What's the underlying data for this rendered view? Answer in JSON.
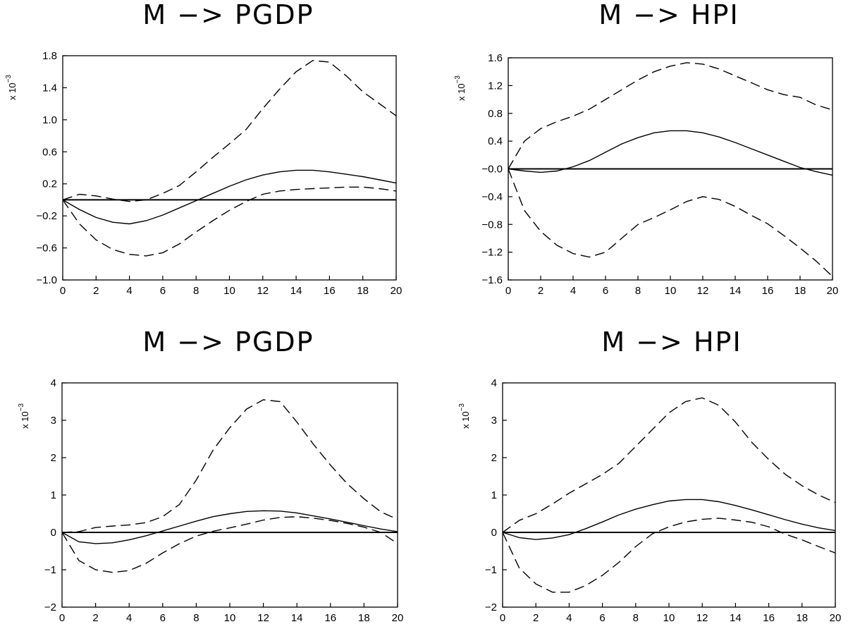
{
  "chart_data": [
    {
      "type": "line",
      "title": "M  −>  PGDP",
      "scale_label": "x 10",
      "scale_exponent": "−3",
      "xlim": [
        0,
        20
      ],
      "ylim": [
        -1.0,
        1.8
      ],
      "xticks": [
        0,
        2,
        4,
        6,
        8,
        10,
        12,
        14,
        16,
        18,
        20
      ],
      "xtick_labels": [
        "0",
        "2",
        "4",
        "6",
        "8",
        "10",
        "12",
        "14",
        "16",
        "18",
        "20"
      ],
      "yticks": [
        -1.0,
        -0.6,
        -0.2,
        0.2,
        0.6,
        1.0,
        1.4,
        1.8
      ],
      "ytick_labels": [
        "−1.0",
        "−0.6",
        "−0.2",
        "0.2",
        "0.6",
        "1.0",
        "1.4",
        "1.8"
      ],
      "zero_line": 0,
      "x": [
        0,
        1,
        2,
        3,
        4,
        5,
        6,
        7,
        8,
        9,
        10,
        11,
        12,
        13,
        14,
        15,
        16,
        17,
        18,
        19,
        20
      ],
      "series": [
        {
          "style": "solid",
          "values": [
            0,
            -0.12,
            -0.22,
            -0.28,
            -0.3,
            -0.26,
            -0.19,
            -0.1,
            -0.01,
            0.08,
            0.17,
            0.25,
            0.31,
            0.35,
            0.37,
            0.37,
            0.35,
            0.32,
            0.29,
            0.25,
            0.21
          ]
        },
        {
          "style": "dashed",
          "values": [
            0,
            0.07,
            0.05,
            0.01,
            -0.02,
            0.0,
            0.08,
            0.18,
            0.35,
            0.53,
            0.7,
            0.88,
            1.14,
            1.38,
            1.6,
            1.74,
            1.72,
            1.55,
            1.35,
            1.2,
            1.05
          ]
        },
        {
          "style": "dashed",
          "values": [
            0,
            -0.3,
            -0.5,
            -0.62,
            -0.68,
            -0.7,
            -0.66,
            -0.55,
            -0.4,
            -0.26,
            -0.13,
            -0.02,
            0.07,
            0.11,
            0.13,
            0.14,
            0.15,
            0.16,
            0.16,
            0.14,
            0.11
          ]
        }
      ]
    },
    {
      "type": "line",
      "title": "M  −>  HPI",
      "scale_label": "x 10",
      "scale_exponent": "−3",
      "xlim": [
        0,
        20
      ],
      "ylim": [
        -1.6,
        1.6
      ],
      "xticks": [
        0,
        2,
        4,
        6,
        8,
        10,
        12,
        14,
        16,
        18,
        20
      ],
      "xtick_labels": [
        "0",
        "2",
        "4",
        "6",
        "8",
        "10",
        "12",
        "14",
        "16",
        "18",
        "20"
      ],
      "yticks": [
        -1.6,
        -1.2,
        -0.8,
        -0.4,
        0.0,
        0.4,
        0.8,
        1.2,
        1.6
      ],
      "ytick_labels": [
        "−1.6",
        "−1.2",
        "−0.8",
        "−0.4",
        "−0.0",
        "0.4",
        "0.8",
        "1.2",
        "1.6"
      ],
      "zero_line": 0,
      "x": [
        0,
        1,
        2,
        3,
        4,
        5,
        6,
        7,
        8,
        9,
        10,
        11,
        12,
        13,
        14,
        15,
        16,
        17,
        18,
        19,
        20
      ],
      "series": [
        {
          "style": "solid",
          "values": [
            0,
            -0.03,
            -0.05,
            -0.03,
            0.03,
            0.12,
            0.24,
            0.36,
            0.45,
            0.52,
            0.55,
            0.55,
            0.52,
            0.46,
            0.38,
            0.29,
            0.2,
            0.11,
            0.02,
            -0.04,
            -0.09
          ]
        },
        {
          "style": "dashed",
          "values": [
            0,
            0.4,
            0.58,
            0.68,
            0.76,
            0.86,
            1.0,
            1.14,
            1.28,
            1.4,
            1.48,
            1.53,
            1.51,
            1.44,
            1.34,
            1.24,
            1.14,
            1.07,
            1.03,
            0.92,
            0.85
          ]
        },
        {
          "style": "dashed",
          "values": [
            0,
            -0.6,
            -0.9,
            -1.1,
            -1.22,
            -1.27,
            -1.2,
            -1.0,
            -0.8,
            -0.7,
            -0.59,
            -0.47,
            -0.4,
            -0.44,
            -0.54,
            -0.67,
            -0.79,
            -0.96,
            -1.14,
            -1.33,
            -1.55
          ]
        }
      ]
    },
    {
      "type": "line",
      "title": "M  −>  PGDP",
      "scale_label": "x 10",
      "scale_exponent": "−3",
      "xlim": [
        0,
        20
      ],
      "ylim": [
        -2,
        4
      ],
      "xticks": [
        0,
        2,
        4,
        6,
        8,
        10,
        12,
        14,
        16,
        18,
        20
      ],
      "xtick_labels": [
        "0",
        "2",
        "4",
        "6",
        "8",
        "10",
        "12",
        "14",
        "16",
        "18",
        "20"
      ],
      "yticks": [
        -2,
        -1,
        0,
        1,
        2,
        3,
        4
      ],
      "ytick_labels": [
        "−2",
        "−1",
        "0",
        "1",
        "2",
        "3",
        "4"
      ],
      "zero_line": 0,
      "x": [
        0,
        1,
        2,
        3,
        4,
        5,
        6,
        7,
        8,
        9,
        10,
        11,
        12,
        13,
        14,
        15,
        16,
        17,
        18,
        19,
        20
      ],
      "series": [
        {
          "style": "solid",
          "values": [
            0,
            -0.25,
            -0.3,
            -0.28,
            -0.2,
            -0.09,
            0.04,
            0.17,
            0.3,
            0.42,
            0.5,
            0.56,
            0.58,
            0.57,
            0.52,
            0.44,
            0.36,
            0.27,
            0.18,
            0.09,
            0.02
          ]
        },
        {
          "style": "dashed",
          "values": [
            0,
            0.02,
            0.13,
            0.17,
            0.2,
            0.26,
            0.42,
            0.75,
            1.4,
            2.2,
            2.8,
            3.3,
            3.55,
            3.5,
            2.95,
            2.35,
            1.8,
            1.3,
            0.9,
            0.55,
            0.35
          ]
        },
        {
          "style": "dashed",
          "values": [
            0,
            -0.75,
            -1.0,
            -1.07,
            -1.02,
            -0.83,
            -0.55,
            -0.3,
            -0.1,
            0.03,
            0.12,
            0.22,
            0.33,
            0.4,
            0.42,
            0.38,
            0.32,
            0.24,
            0.14,
            0.0,
            -0.3
          ]
        }
      ]
    },
    {
      "type": "line",
      "title": "M  −>  HPI",
      "scale_label": "x 10",
      "scale_exponent": "−3",
      "xlim": [
        0,
        20
      ],
      "ylim": [
        -2,
        4
      ],
      "xticks": [
        0,
        2,
        4,
        6,
        8,
        10,
        12,
        14,
        16,
        18,
        20
      ],
      "xtick_labels": [
        "0",
        "2",
        "4",
        "6",
        "8",
        "10",
        "12",
        "14",
        "16",
        "18",
        "20"
      ],
      "yticks": [
        -2,
        -1,
        0,
        1,
        2,
        3,
        4
      ],
      "ytick_labels": [
        "−2",
        "−1",
        "0",
        "1",
        "2",
        "3",
        "4"
      ],
      "zero_line": 0,
      "x": [
        0,
        1,
        2,
        3,
        4,
        5,
        6,
        7,
        8,
        9,
        10,
        11,
        12,
        13,
        14,
        15,
        16,
        17,
        18,
        19,
        20
      ],
      "series": [
        {
          "style": "solid",
          "values": [
            0,
            -0.14,
            -0.19,
            -0.15,
            -0.06,
            0.1,
            0.28,
            0.47,
            0.62,
            0.74,
            0.84,
            0.88,
            0.88,
            0.82,
            0.72,
            0.6,
            0.47,
            0.34,
            0.22,
            0.12,
            0.05
          ]
        },
        {
          "style": "dashed",
          "values": [
            0,
            0.32,
            0.5,
            0.76,
            1.05,
            1.3,
            1.55,
            1.85,
            2.3,
            2.75,
            3.2,
            3.5,
            3.6,
            3.4,
            2.95,
            2.4,
            1.95,
            1.55,
            1.25,
            1.0,
            0.8
          ]
        },
        {
          "style": "dashed",
          "values": [
            0,
            -0.95,
            -1.38,
            -1.6,
            -1.6,
            -1.42,
            -1.15,
            -0.8,
            -0.38,
            -0.04,
            0.15,
            0.28,
            0.35,
            0.38,
            0.33,
            0.27,
            0.15,
            -0.05,
            -0.2,
            -0.38,
            -0.55
          ]
        }
      ]
    }
  ]
}
